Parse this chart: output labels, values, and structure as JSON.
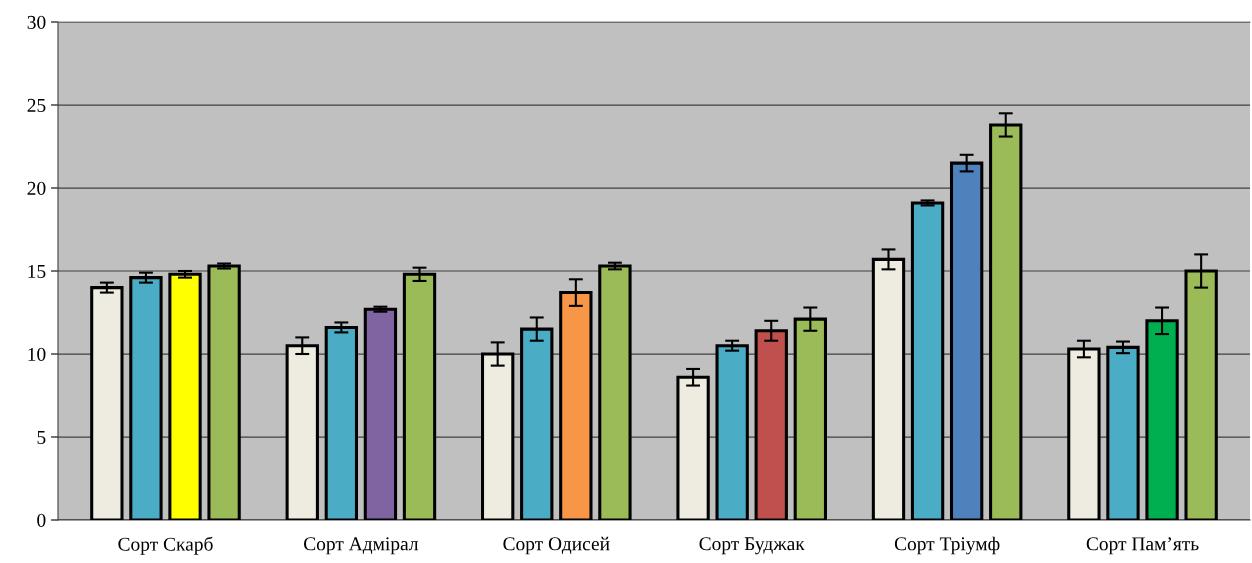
{
  "chart_data": {
    "type": "bar",
    "categories": [
      "Сорт Скарб",
      "Сорт Адмірал",
      "Сорт Одисей",
      "Сорт Буджак",
      "Сорт Тріумф",
      "Сорт Пам’ять"
    ],
    "series": [
      {
        "color": "#eeece1",
        "values": [
          14.0,
          10.5,
          10.0,
          8.6,
          15.7,
          10.3
        ],
        "errors": [
          0.3,
          0.5,
          0.7,
          0.5,
          0.6,
          0.5
        ]
      },
      {
        "color": "#4bacc6",
        "values": [
          14.6,
          11.6,
          11.5,
          10.5,
          19.1,
          10.4
        ],
        "errors": [
          0.3,
          0.3,
          0.7,
          0.3,
          0.15,
          0.35
        ]
      },
      {
        "colors": [
          "#ffff00",
          "#8064a2",
          "#f79646",
          "#c0504d",
          "#4f81bd",
          "#00b050"
        ],
        "values": [
          14.8,
          12.7,
          13.7,
          11.4,
          21.5,
          12.0
        ],
        "errors": [
          0.2,
          0.15,
          0.8,
          0.6,
          0.5,
          0.8
        ]
      },
      {
        "color": "#9bbb59",
        "values": [
          15.3,
          14.8,
          15.3,
          12.1,
          23.8,
          15.0
        ],
        "errors": [
          0.15,
          0.4,
          0.2,
          0.7,
          0.7,
          1.0
        ]
      }
    ],
    "ylim": [
      0,
      30
    ],
    "yticks": [
      0,
      5,
      10,
      15,
      20,
      25,
      30
    ],
    "grid": "y"
  }
}
